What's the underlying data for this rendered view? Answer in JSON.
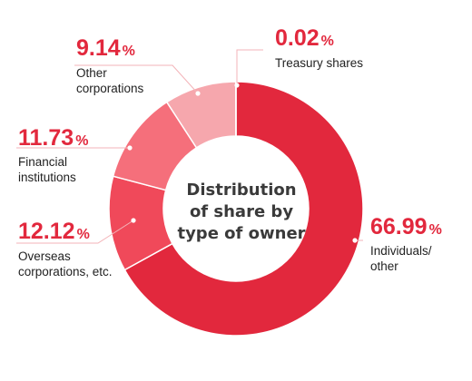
{
  "chart_data": {
    "type": "pie",
    "style": "donut",
    "center_title": [
      "Distribution",
      "of share by",
      "type of owner"
    ],
    "start": "top, clockwise",
    "slices": [
      {
        "label": [
          "Individuals/",
          "other"
        ],
        "value": 66.99,
        "display": "66.99",
        "color": "#e2283d"
      },
      {
        "label": [
          "Overseas",
          "corporations, etc."
        ],
        "value": 12.12,
        "display": "12.12",
        "color": "#f0495a"
      },
      {
        "label": [
          "Financial",
          "institutions"
        ],
        "value": 11.73,
        "display": "11.73",
        "color": "#f56f7b"
      },
      {
        "label": [
          "Other",
          "corporations"
        ],
        "value": 9.14,
        "display": "9.14",
        "color": "#f6a7ad"
      },
      {
        "label": [
          "Treasury shares"
        ],
        "value": 0.02,
        "display": "0.02",
        "color": "#e2283d"
      }
    ],
    "percent_sign": "%"
  }
}
